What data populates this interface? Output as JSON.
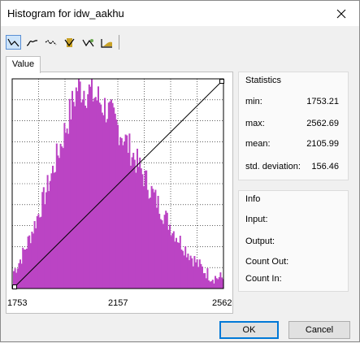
{
  "window": {
    "title": "Histogram for idw_aakhu"
  },
  "toolbar": {
    "tools": [
      {
        "name": "linear-stretch-icon",
        "active": true
      },
      {
        "name": "histogram-equalize-icon",
        "active": false
      },
      {
        "name": "gaussian-icon",
        "active": false
      },
      {
        "name": "square-root-icon",
        "active": false
      },
      {
        "name": "logarithmic-icon",
        "active": false
      },
      {
        "name": "exponential-icon",
        "active": false
      }
    ]
  },
  "tab": {
    "label": "Value"
  },
  "chart_data": {
    "type": "histogram",
    "xlim": [
      1753.21,
      2562.69
    ],
    "x_ticks": [
      "1753",
      "2157",
      "2562"
    ],
    "grid": true,
    "bar_color": "#bb44c4",
    "peak_x": 2000,
    "stretch_line": {
      "from": [
        1753.21,
        0
      ],
      "to": [
        2562.69,
        1
      ]
    }
  },
  "statistics": {
    "title": "Statistics",
    "rows": [
      {
        "label": "min:",
        "value": "1753.21"
      },
      {
        "label": "max:",
        "value": "2562.69"
      },
      {
        "label": "mean:",
        "value": "2105.99"
      },
      {
        "label": "std. deviation:",
        "value": "156.46"
      }
    ]
  },
  "info": {
    "title": "Info",
    "rows": [
      {
        "label": "Input:"
      },
      {
        "label": "Output:"
      },
      {
        "label": "Count Out:"
      },
      {
        "label": "Count In:"
      }
    ]
  },
  "buttons": {
    "ok": "OK",
    "cancel": "Cancel"
  }
}
